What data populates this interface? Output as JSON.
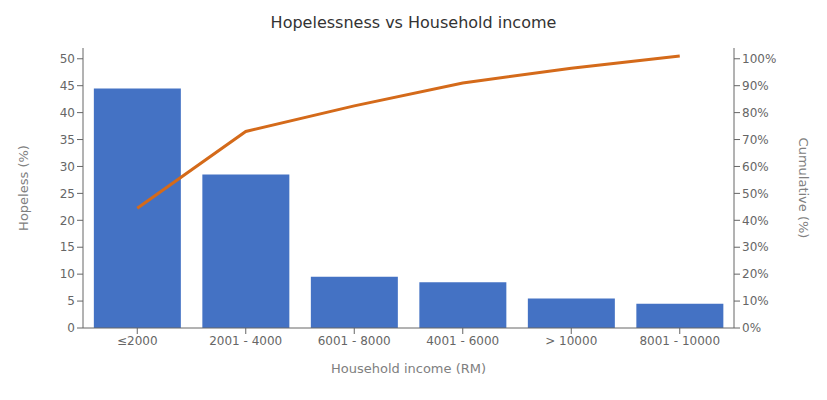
{
  "chart_data": {
    "type": "bar",
    "title": "Hopelessness vs Household income",
    "xlabel": "Household income (RM)",
    "ylabel": "Hopeless (%)",
    "y2label": "Cumulative (%)",
    "categories": [
      "≤2000",
      "2001 - 4000",
      "6001 - 8000",
      "4001 - 6000",
      "> 10000",
      "8001 - 10000"
    ],
    "series": [
      {
        "type": "bar",
        "color": "#4472C4",
        "values": [
          44.5,
          28.5,
          9.5,
          8.5,
          5.5,
          4.5
        ]
      },
      {
        "type": "line",
        "color": "#D46A1A",
        "axis": "y2",
        "values": [
          44.5,
          73.0,
          82.5,
          91.0,
          96.5,
          101.0
        ]
      }
    ],
    "ylim": [
      0,
      52
    ],
    "yticks": [
      0,
      5,
      10,
      15,
      20,
      25,
      30,
      35,
      40,
      45,
      50
    ],
    "y2lim": [
      0,
      104
    ],
    "y2ticks": [
      {
        "value": 0,
        "label": "0%"
      },
      {
        "value": 10,
        "label": "10%"
      },
      {
        "value": 20,
        "label": "20%"
      },
      {
        "value": 30,
        "label": "30%"
      },
      {
        "value": 40,
        "label": "40%"
      },
      {
        "value": 50,
        "label": "50%"
      },
      {
        "value": 60,
        "label": "60%"
      },
      {
        "value": 70,
        "label": "70%"
      },
      {
        "value": 80,
        "label": "80%"
      },
      {
        "value": 90,
        "label": "90%"
      },
      {
        "value": 100,
        "label": "100%"
      }
    ],
    "grid": false
  }
}
